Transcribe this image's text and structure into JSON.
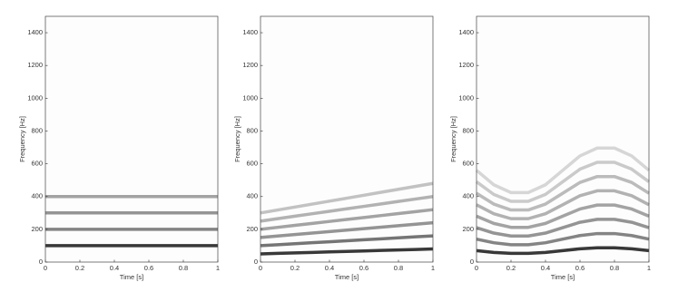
{
  "chart_data": [
    {
      "type": "line",
      "xlabel": "Time [s]",
      "ylabel": "Frequency [Hz]",
      "xlim": [
        0,
        1
      ],
      "ylim": [
        0,
        1500
      ],
      "xticks": [
        0,
        0.2,
        0.4,
        0.6,
        0.8,
        1
      ],
      "yticks": [
        0,
        200,
        400,
        600,
        800,
        1000,
        1200,
        1400
      ],
      "x": [
        0,
        1
      ],
      "series": [
        {
          "color": "#222222",
          "values": [
            100,
            100
          ]
        },
        {
          "color": "#777777",
          "values": [
            200,
            200
          ]
        },
        {
          "color": "#888888",
          "values": [
            300,
            300
          ]
        },
        {
          "color": "#999999",
          "values": [
            400,
            400
          ]
        }
      ]
    },
    {
      "type": "line",
      "xlabel": "Time [s]",
      "ylabel": "Frequency [Hz]",
      "xlim": [
        0,
        1
      ],
      "ylim": [
        0,
        1500
      ],
      "xticks": [
        0,
        0.2,
        0.4,
        0.6,
        0.8,
        1
      ],
      "yticks": [
        0,
        200,
        400,
        600,
        800,
        1000,
        1200,
        1400
      ],
      "x": [
        0,
        0.1,
        0.2,
        0.3,
        0.4,
        0.5,
        0.6,
        0.7,
        0.8,
        0.9,
        1
      ],
      "series": [
        {
          "color": "#222222",
          "values": [
            50,
            53,
            56,
            59,
            62,
            65,
            68,
            71,
            74,
            77,
            80
          ]
        },
        {
          "color": "#666666",
          "values": [
            100,
            106,
            112,
            118,
            124,
            130,
            136,
            142,
            148,
            154,
            160
          ]
        },
        {
          "color": "#888888",
          "values": [
            150,
            159,
            168,
            177,
            186,
            195,
            204,
            213,
            222,
            231,
            240
          ]
        },
        {
          "color": "#999999",
          "values": [
            200,
            212,
            224,
            236,
            248,
            260,
            272,
            284,
            296,
            308,
            320
          ]
        },
        {
          "color": "#aaaaaa",
          "values": [
            250,
            265,
            280,
            295,
            310,
            325,
            340,
            355,
            370,
            385,
            400
          ]
        },
        {
          "color": "#bbbbbb",
          "values": [
            300,
            318,
            336,
            354,
            372,
            390,
            408,
            426,
            444,
            462,
            480
          ]
        }
      ]
    },
    {
      "type": "line",
      "xlabel": "Time [s]",
      "ylabel": "Frequency [Hz]",
      "xlim": [
        0,
        1
      ],
      "ylim": [
        0,
        1500
      ],
      "xticks": [
        0,
        0.2,
        0.4,
        0.6,
        0.8,
        1
      ],
      "yticks": [
        0,
        200,
        400,
        600,
        800,
        1000,
        1200,
        1400
      ],
      "x": [
        0,
        0.1,
        0.2,
        0.3,
        0.4,
        0.5,
        0.6,
        0.7,
        0.8,
        0.9,
        1
      ],
      "series": [
        {
          "color": "#222222",
          "values": [
            70,
            59,
            53,
            53,
            59,
            70,
            81,
            87,
            87,
            81,
            70
          ]
        },
        {
          "color": "#777777",
          "values": [
            140,
            118,
            106,
            106,
            118,
            140,
            162,
            174,
            174,
            162,
            140
          ]
        },
        {
          "color": "#888888",
          "values": [
            210,
            177,
            159,
            159,
            177,
            210,
            243,
            261,
            261,
            243,
            210
          ]
        },
        {
          "color": "#999999",
          "values": [
            280,
            236,
            212,
            212,
            236,
            280,
            324,
            348,
            348,
            324,
            280
          ]
        },
        {
          "color": "#aaaaaa",
          "values": [
            350,
            295,
            265,
            265,
            295,
            350,
            405,
            435,
            435,
            405,
            350
          ]
        },
        {
          "color": "#b4b4b4",
          "values": [
            420,
            354,
            318,
            318,
            354,
            420,
            486,
            522,
            522,
            486,
            420
          ]
        },
        {
          "color": "#c4c4c4",
          "values": [
            490,
            413,
            371,
            371,
            413,
            490,
            567,
            609,
            609,
            567,
            490
          ]
        },
        {
          "color": "#d2d2d2",
          "values": [
            560,
            472,
            424,
            424,
            472,
            560,
            648,
            696,
            696,
            648,
            560
          ]
        }
      ]
    }
  ]
}
